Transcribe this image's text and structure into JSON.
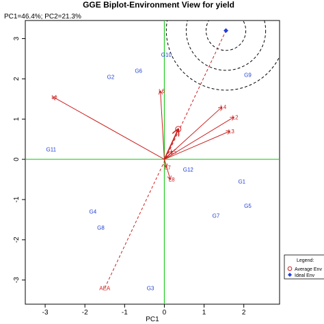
{
  "chart_data": {
    "type": "scatter",
    "title": "GGE Biplot-Environment View for yield",
    "subtitle": "PC1=46.4%; PC2=21.3%",
    "xlabel": "PC1",
    "ylabel": "",
    "xlim": [
      -3.5,
      2.9
    ],
    "ylim": [
      -3.6,
      3.45
    ],
    "x_ticks": [
      -3,
      -2,
      -1,
      0,
      1,
      2
    ],
    "y_ticks": [
      -3,
      -2,
      -1,
      0,
      1,
      2,
      3
    ],
    "genotypes": [
      {
        "label": "G1",
        "x": 1.95,
        "y": -0.55
      },
      {
        "label": "G2",
        "x": -1.35,
        "y": 2.05
      },
      {
        "label": "G3",
        "x": -0.35,
        "y": -3.2
      },
      {
        "label": "G4",
        "x": -1.8,
        "y": -1.3
      },
      {
        "label": "G5",
        "x": 2.1,
        "y": -1.15
      },
      {
        "label": "G6",
        "x": -0.65,
        "y": 2.2
      },
      {
        "label": "G7",
        "x": 1.3,
        "y": -1.4
      },
      {
        "label": "G8",
        "x": -1.6,
        "y": -1.7
      },
      {
        "label": "G9",
        "x": 2.1,
        "y": 2.1
      },
      {
        "label": "G10",
        "x": 0.05,
        "y": 2.6
      },
      {
        "label": "G11",
        "x": -2.85,
        "y": 0.25
      },
      {
        "label": "G12",
        "x": 0.6,
        "y": -0.25
      }
    ],
    "environments": [
      {
        "label": "L1",
        "x": -2.8,
        "y": 1.55
      },
      {
        "label": "L2",
        "x": 1.75,
        "y": 1.05
      },
      {
        "label": "L3",
        "x": 1.65,
        "y": 0.7
      },
      {
        "label": "L4",
        "x": 1.45,
        "y": 1.3
      },
      {
        "label": "L5",
        "x": 0.2,
        "y": 0.2
      },
      {
        "label": "L6",
        "x": -0.1,
        "y": 1.7
      },
      {
        "label": "L7",
        "x": 0.05,
        "y": -0.2
      },
      {
        "label": "L8",
        "x": 0.15,
        "y": -0.5
      }
    ],
    "aea": {
      "label": "AEA",
      "x": -1.5,
      "y": -3.2
    },
    "average_env": {
      "x": 0.35,
      "y": 0.75
    },
    "ideal_env": {
      "x": 1.55,
      "y": 3.2
    },
    "concentric_circle_radii": [
      0.5,
      1.0,
      1.5
    ],
    "legend": {
      "title": "Legend:",
      "items": [
        {
          "label": "Average Env",
          "symbol": "open-circle",
          "color": "#cc1f1f"
        },
        {
          "label": "Ideal Env",
          "symbol": "filled-diamond",
          "color": "#1f3fd6"
        }
      ],
      "placement": "bottom-right"
    },
    "colors": {
      "genotype": "#1f3fd6",
      "environment": "#cc1f1f",
      "axis_lines": "#22cc22",
      "circles": "#000000",
      "ideal": "#1f3fd6"
    }
  }
}
